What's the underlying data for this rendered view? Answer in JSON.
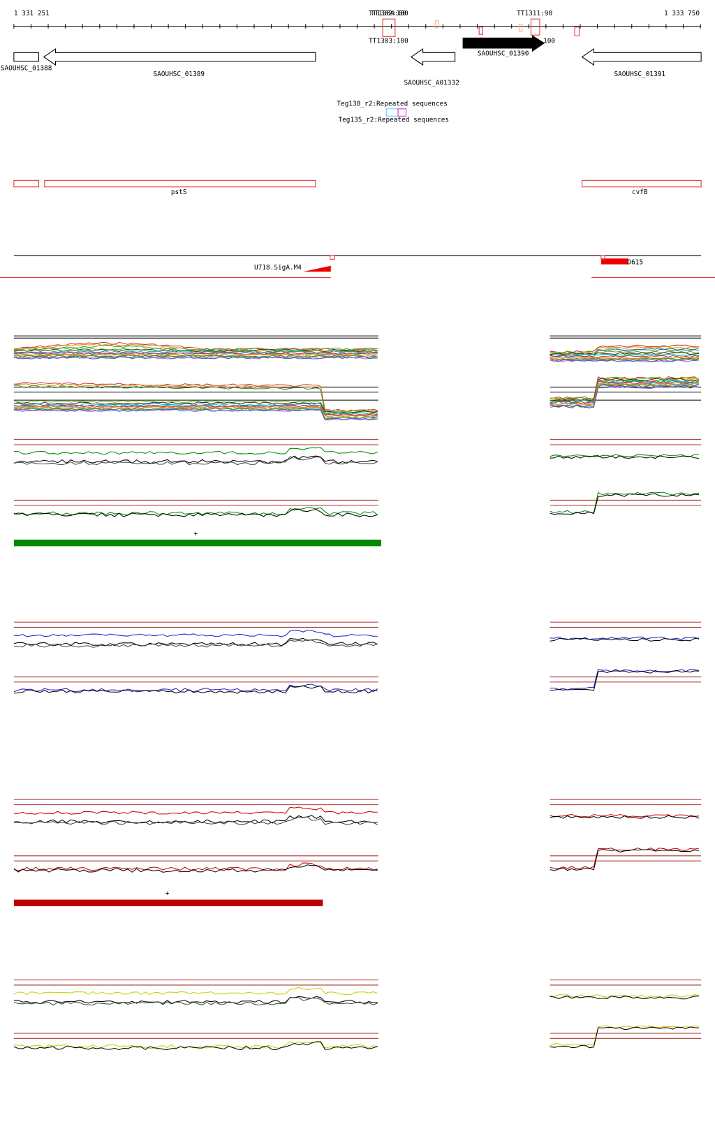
{
  "ruler": {
    "start": "1 331 251",
    "end": "1 333 750"
  },
  "terminators": [
    "TT1304:80",
    "TT1302:100",
    "TT1311:90",
    "TT1303:100",
    "100"
  ],
  "genes": [
    "SAOUHSC_01388",
    "SAOUHSC_01389",
    "SAOUHSC_01390",
    "SAOUHSC_A01332",
    "SAOUHSC_01391"
  ],
  "repeats": [
    "Teg138_r2:Repeated sequences",
    "Teg135_r2:Repeated sequences"
  ],
  "operons": [
    "pstS",
    "cvfB"
  ],
  "promoters": [
    "U718.SigA.M4",
    "D615"
  ],
  "strand_marks": [
    "+",
    "+"
  ]
}
